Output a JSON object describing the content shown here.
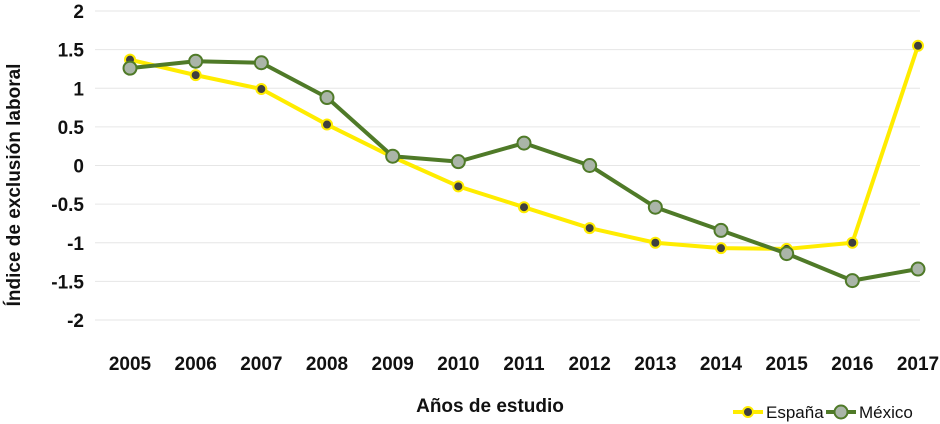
{
  "chart_data": {
    "type": "line",
    "title": "",
    "xlabel": "Años de estudio",
    "ylabel": "Índice de exclusión laboral",
    "categories": [
      "2005",
      "2006",
      "2007",
      "2008",
      "2009",
      "2010",
      "2011",
      "2012",
      "2013",
      "2014",
      "2015",
      "2016",
      "2017"
    ],
    "y_ticks": [
      "2",
      "1.5",
      "1",
      "0.5",
      "0",
      "-0.5",
      "-1",
      "-1.5",
      "-2"
    ],
    "ylim": [
      -2,
      2
    ],
    "grid": true,
    "legend_position": "bottom-right",
    "series": [
      {
        "name": "España",
        "color": "#ffec00",
        "marker_fill": "#3f3f3f",
        "values": [
          1.37,
          1.17,
          0.99,
          0.53,
          0.11,
          -0.27,
          -0.54,
          -0.81,
          -1.0,
          -1.07,
          -1.08,
          -1.0,
          1.55
        ]
      },
      {
        "name": "México",
        "color": "#4f7a28",
        "marker_fill": "#aab5a8",
        "values": [
          1.26,
          1.35,
          1.33,
          0.88,
          0.12,
          0.05,
          0.29,
          0.0,
          -0.54,
          -0.84,
          -1.14,
          -1.49,
          -1.34
        ]
      }
    ]
  }
}
